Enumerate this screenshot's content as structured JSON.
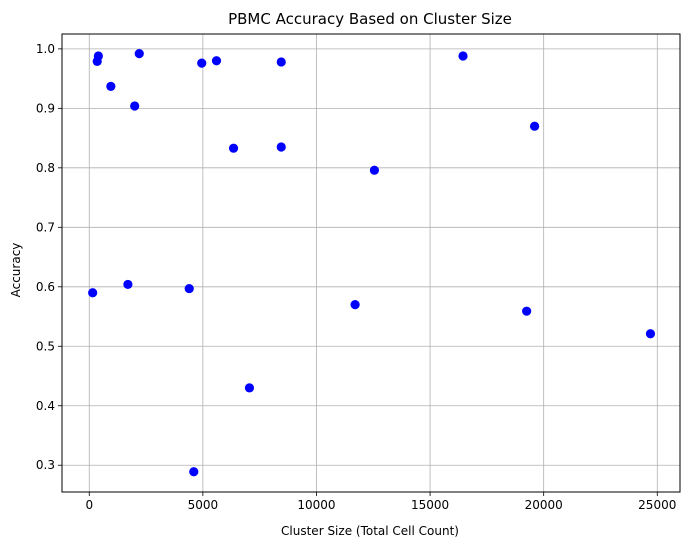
{
  "chart_data": {
    "type": "scatter",
    "title": "PBMC Accuracy Based on Cluster Size",
    "xlabel": "Cluster Size (Total Cell Count)",
    "ylabel": "Accuracy",
    "xlim": [
      -1200,
      26000
    ],
    "ylim": [
      0.255,
      1.025
    ],
    "xticks": [
      0,
      5000,
      10000,
      15000,
      20000,
      25000
    ],
    "xtick_labels": [
      "0",
      "5000",
      "10000",
      "15000",
      "20000",
      "25000"
    ],
    "yticks": [
      0.3,
      0.4,
      0.5,
      0.6,
      0.7,
      0.8,
      0.9,
      1.0
    ],
    "ytick_labels": [
      "0.3",
      "0.4",
      "0.5",
      "0.6",
      "0.7",
      "0.8",
      "0.9",
      "1.0"
    ],
    "grid": true,
    "marker_color": "#0000ff",
    "points": [
      {
        "x": 150,
        "y": 0.59
      },
      {
        "x": 350,
        "y": 0.979
      },
      {
        "x": 400,
        "y": 0.988
      },
      {
        "x": 950,
        "y": 0.937
      },
      {
        "x": 1700,
        "y": 0.604
      },
      {
        "x": 2000,
        "y": 0.904
      },
      {
        "x": 2200,
        "y": 0.992
      },
      {
        "x": 4400,
        "y": 0.597
      },
      {
        "x": 4600,
        "y": 0.289
      },
      {
        "x": 4950,
        "y": 0.976
      },
      {
        "x": 5600,
        "y": 0.98
      },
      {
        "x": 6350,
        "y": 0.833
      },
      {
        "x": 7050,
        "y": 0.43
      },
      {
        "x": 8450,
        "y": 0.978
      },
      {
        "x": 8450,
        "y": 0.835
      },
      {
        "x": 11700,
        "y": 0.57
      },
      {
        "x": 12550,
        "y": 0.796
      },
      {
        "x": 16450,
        "y": 0.988
      },
      {
        "x": 19250,
        "y": 0.559
      },
      {
        "x": 19600,
        "y": 0.87
      },
      {
        "x": 24700,
        "y": 0.521
      }
    ]
  }
}
